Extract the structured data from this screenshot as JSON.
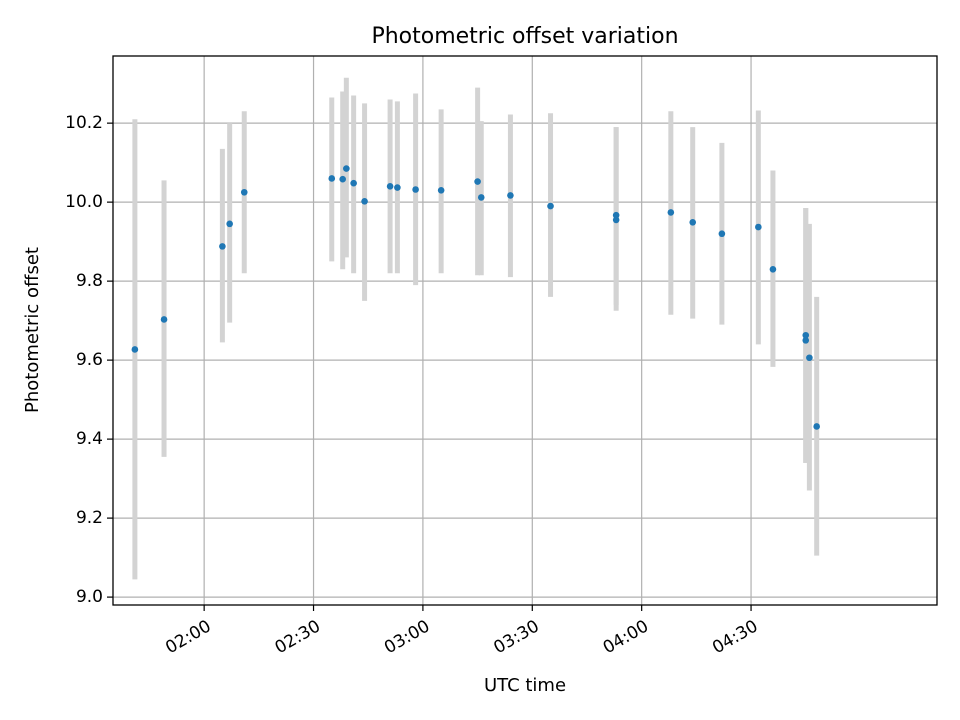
{
  "chart_data": {
    "type": "scatter",
    "title": "Photometric offset variation",
    "xlabel": "UTC time",
    "ylabel": "Photometric offset",
    "x_is_time": true,
    "xlim": [
      "01:35",
      "05:21"
    ],
    "ylim": [
      8.98,
      10.37
    ],
    "xticks": [
      "02:00",
      "02:30",
      "03:00",
      "03:30",
      "04:00",
      "04:30"
    ],
    "yticks": [
      9.0,
      9.2,
      9.4,
      9.6,
      9.8,
      10.0,
      10.2
    ],
    "ytick_labels": [
      "9.0",
      "9.2",
      "9.4",
      "9.6",
      "9.8",
      "10.0",
      "10.2"
    ],
    "grid": true,
    "colors": {
      "point": "#1f77b4",
      "errorbar": "#d3d3d3"
    },
    "points": [
      {
        "time": "01:41",
        "y": 9.627,
        "err_low": 9.045,
        "err_high": 10.21
      },
      {
        "time": "01:49",
        "y": 9.703,
        "err_low": 9.355,
        "err_high": 10.055
      },
      {
        "time": "02:05",
        "y": 9.888,
        "err_low": 9.645,
        "err_high": 10.135
      },
      {
        "time": "02:07",
        "y": 9.945,
        "err_low": 9.695,
        "err_high": 10.2
      },
      {
        "time": "02:11",
        "y": 10.025,
        "err_low": 9.82,
        "err_high": 10.23
      },
      {
        "time": "02:35",
        "y": 10.06,
        "err_low": 9.85,
        "err_high": 10.265
      },
      {
        "time": "02:38",
        "y": 10.058,
        "err_low": 9.83,
        "err_high": 10.28
      },
      {
        "time": "02:39",
        "y": 10.085,
        "err_low": 9.86,
        "err_high": 10.315
      },
      {
        "time": "02:41",
        "y": 10.048,
        "err_low": 9.82,
        "err_high": 10.27
      },
      {
        "time": "02:44",
        "y": 10.002,
        "err_low": 9.75,
        "err_high": 10.25
      },
      {
        "time": "02:51",
        "y": 10.04,
        "err_low": 9.82,
        "err_high": 10.26
      },
      {
        "time": "02:53",
        "y": 10.037,
        "err_low": 9.82,
        "err_high": 10.255
      },
      {
        "time": "02:58",
        "y": 10.032,
        "err_low": 9.79,
        "err_high": 10.275
      },
      {
        "time": "03:05",
        "y": 10.03,
        "err_low": 9.82,
        "err_high": 10.235
      },
      {
        "time": "03:15",
        "y": 10.052,
        "err_low": 9.815,
        "err_high": 10.29
      },
      {
        "time": "03:16",
        "y": 10.012,
        "err_low": 9.815,
        "err_high": 10.205
      },
      {
        "time": "03:24",
        "y": 10.017,
        "err_low": 9.81,
        "err_high": 10.222
      },
      {
        "time": "03:35",
        "y": 9.99,
        "err_low": 9.76,
        "err_high": 10.225
      },
      {
        "time": "03:53",
        "y": 9.955,
        "err_low": 9.725,
        "err_high": 10.19
      },
      {
        "time": "03:53",
        "y": 9.967,
        "err_low": 9.74,
        "err_high": 10.19
      },
      {
        "time": "04:08",
        "y": 9.974,
        "err_low": 9.715,
        "err_high": 10.23
      },
      {
        "time": "04:14",
        "y": 9.949,
        "err_low": 9.705,
        "err_high": 10.19
      },
      {
        "time": "04:22",
        "y": 9.92,
        "err_low": 9.69,
        "err_high": 10.15
      },
      {
        "time": "04:32",
        "y": 9.937,
        "err_low": 9.64,
        "err_high": 10.232
      },
      {
        "time": "04:36",
        "y": 9.83,
        "err_low": 9.583,
        "err_high": 10.08
      },
      {
        "time": "04:45",
        "y": 9.65,
        "err_low": 9.34,
        "err_high": 9.985
      },
      {
        "time": "04:45",
        "y": 9.663,
        "err_low": 9.34,
        "err_high": 9.985
      },
      {
        "time": "04:46",
        "y": 9.606,
        "err_low": 9.27,
        "err_high": 9.945
      },
      {
        "time": "04:48",
        "y": 9.432,
        "err_low": 9.105,
        "err_high": 9.76
      }
    ]
  }
}
